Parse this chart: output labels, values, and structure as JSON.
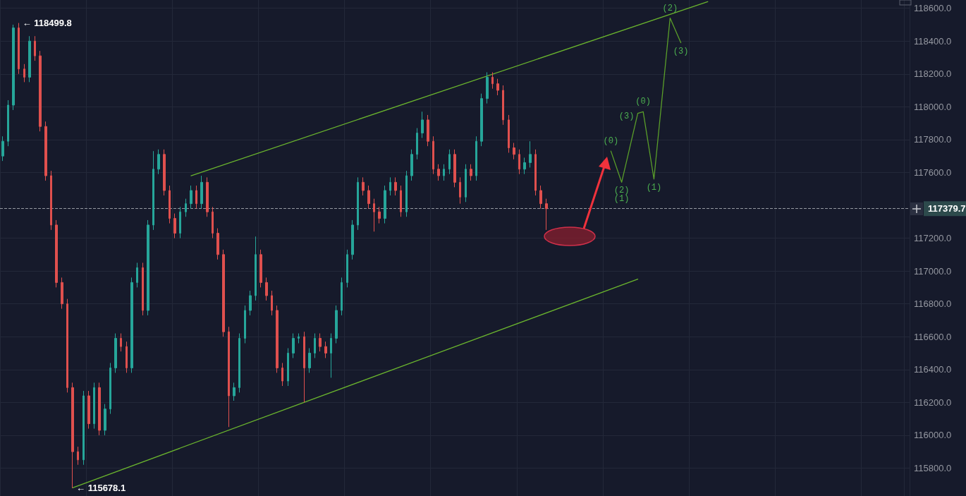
{
  "chart_data": {
    "type": "candlestick",
    "categories": [
      null,
      null,
      null,
      null,
      null,
      null,
      null,
      null,
      null,
      null,
      null,
      null,
      null,
      null,
      null,
      null,
      null,
      null,
      null,
      null,
      null,
      null,
      null,
      null,
      null,
      null,
      null,
      null,
      null,
      null,
      null,
      null,
      null,
      null,
      null,
      null,
      null,
      null,
      null,
      null,
      null,
      null,
      null,
      null,
      null,
      null,
      null,
      null,
      null,
      null,
      null,
      null,
      null,
      null,
      null,
      null,
      null,
      null,
      null,
      null,
      null,
      null,
      null,
      null,
      null,
      null,
      null,
      null,
      null,
      null,
      null,
      null,
      null,
      null,
      null,
      null,
      null,
      null,
      null,
      null,
      null,
      null,
      null,
      null,
      null,
      null,
      null,
      null,
      null,
      null,
      null,
      null,
      null,
      null,
      null,
      null,
      null,
      null,
      null,
      null,
      null,
      null,
      null,
      null,
      null,
      null,
      null,
      null,
      null,
      null,
      null,
      null,
      null,
      null,
      null,
      null,
      null,
      null,
      null,
      null,
      null,
      null,
      null,
      null,
      null,
      null,
      null,
      null,
      null,
      null,
      null,
      null,
      null,
      null,
      null,
      null,
      null,
      null,
      null,
      null,
      null,
      null,
      null,
      null,
      null,
      null,
      null,
      null,
      null,
      null,
      null,
      null,
      null,
      null,
      null,
      null,
      null,
      null,
      null,
      null,
      null,
      null,
      null,
      null,
      null,
      null,
      null,
      null,
      null
    ],
    "ohlc": [
      [
        117700,
        117820,
        117670,
        117790
      ],
      [
        117790,
        118040,
        117760,
        118010
      ],
      [
        118010,
        118499.8,
        117980,
        118480
      ],
      [
        118480,
        118510,
        118200,
        118230
      ],
      [
        118230,
        118260,
        118150,
        118180
      ],
      [
        118180,
        118430,
        118150,
        118400
      ],
      [
        118400,
        118430,
        118280,
        118310
      ],
      [
        118310,
        118340,
        117850,
        117880
      ],
      [
        117880,
        117910,
        117550,
        117580
      ],
      [
        117580,
        117610,
        117250,
        117280
      ],
      [
        117280,
        117310,
        116900,
        116930
      ],
      [
        116930,
        116960,
        116770,
        116800
      ],
      [
        116800,
        116830,
        116260,
        116290
      ],
      [
        116290,
        116320,
        115678.1,
        115900
      ],
      [
        115900,
        115930,
        115820,
        115850
      ],
      [
        115850,
        116270,
        115820,
        116240
      ],
      [
        116240,
        116270,
        116040,
        116070
      ],
      [
        116070,
        116320,
        116040,
        116290
      ],
      [
        116290,
        116320,
        116000,
        116030
      ],
      [
        116030,
        116190,
        116000,
        116160
      ],
      [
        116160,
        116440,
        116130,
        116410
      ],
      [
        116410,
        116620,
        116380,
        116590
      ],
      [
        116590,
        116620,
        116510,
        116540
      ],
      [
        116540,
        116570,
        116380,
        116410
      ],
      [
        116410,
        116960,
        116380,
        116930
      ],
      [
        116930,
        117050,
        116900,
        117020
      ],
      [
        117020,
        117050,
        116730,
        116760
      ],
      [
        116760,
        117310,
        116730,
        117280
      ],
      [
        117280,
        117730,
        117250,
        117620
      ],
      [
        117620,
        117740,
        117590,
        117710
      ],
      [
        117710,
        117740,
        117460,
        117490
      ],
      [
        117490,
        117520,
        117290,
        117320
      ],
      [
        117320,
        117350,
        117200,
        117230
      ],
      [
        117230,
        117390,
        117200,
        117360
      ],
      [
        117360,
        117440,
        117330,
        117410
      ],
      [
        117410,
        117520,
        117380,
        117490
      ],
      [
        117490,
        117520,
        117380,
        117410
      ],
      [
        117410,
        117580,
        117380,
        117540
      ],
      [
        117540,
        117570,
        117330,
        117360
      ],
      [
        117360,
        117390,
        117200,
        117230
      ],
      [
        117230,
        117260,
        117070,
        117100
      ],
      [
        117100,
        117130,
        116600,
        116630
      ],
      [
        116630,
        116660,
        116050,
        116240
      ],
      [
        116240,
        116320,
        116210,
        116290
      ],
      [
        116290,
        116620,
        116260,
        116590
      ],
      [
        116590,
        116790,
        116560,
        116760
      ],
      [
        116760,
        116880,
        116730,
        116850
      ],
      [
        116850,
        117210,
        116820,
        117100
      ],
      [
        117100,
        117130,
        116900,
        116930
      ],
      [
        116930,
        116960,
        116820,
        116850
      ],
      [
        116850,
        116880,
        116730,
        116760
      ],
      [
        116760,
        116790,
        116380,
        116410
      ],
      [
        116410,
        116440,
        116300,
        116330
      ],
      [
        116330,
        116530,
        116300,
        116500
      ],
      [
        116500,
        116620,
        116470,
        116590
      ],
      [
        116590,
        116620,
        116560,
        116600
      ],
      [
        116600,
        116630,
        116200,
        116410
      ],
      [
        116410,
        116530,
        116380,
        116500
      ],
      [
        116500,
        116620,
        116470,
        116590
      ],
      [
        116590,
        116620,
        116510,
        116540
      ],
      [
        116540,
        116570,
        116470,
        116500
      ],
      [
        116500,
        116620,
        116350,
        116590
      ],
      [
        116590,
        116790,
        116560,
        116760
      ],
      [
        116760,
        116960,
        116730,
        116930
      ],
      [
        116930,
        117130,
        116900,
        117100
      ],
      [
        117100,
        117310,
        117070,
        117280
      ],
      [
        117280,
        117570,
        117250,
        117540
      ],
      [
        117540,
        117570,
        117460,
        117490
      ],
      [
        117490,
        117520,
        117380,
        117410
      ],
      [
        117410,
        117440,
        117240,
        117360
      ],
      [
        117360,
        117390,
        117290,
        117320
      ],
      [
        117320,
        117520,
        117290,
        117490
      ],
      [
        117490,
        117570,
        117460,
        117540
      ],
      [
        117540,
        117570,
        117460,
        117490
      ],
      [
        117490,
        117520,
        117330,
        117360
      ],
      [
        117360,
        117610,
        117330,
        117580
      ],
      [
        117580,
        117740,
        117550,
        117710
      ],
      [
        117710,
        117870,
        117680,
        117840
      ],
      [
        117840,
        117970,
        117810,
        117920
      ],
      [
        117920,
        117950,
        117760,
        117790
      ],
      [
        117790,
        117820,
        117590,
        117620
      ],
      [
        117620,
        117650,
        117550,
        117580
      ],
      [
        117580,
        117650,
        117550,
        117620
      ],
      [
        117620,
        117740,
        117590,
        117710
      ],
      [
        117710,
        117740,
        117510,
        117540
      ],
      [
        117540,
        117570,
        117410,
        117450
      ],
      [
        117450,
        117650,
        117420,
        117620
      ],
      [
        117620,
        117650,
        117550,
        117580
      ],
      [
        117580,
        117820,
        117550,
        117790
      ],
      [
        117790,
        118080,
        117760,
        118050
      ],
      [
        118050,
        118210,
        118020,
        118180
      ],
      [
        118180,
        118210,
        118110,
        118140
      ],
      [
        118140,
        118170,
        118070,
        118100
      ],
      [
        118100,
        118130,
        117890,
        117920
      ],
      [
        117920,
        117950,
        117720,
        117750
      ],
      [
        117750,
        117780,
        117680,
        117710
      ],
      [
        117710,
        117740,
        117590,
        117620
      ],
      [
        117620,
        117690,
        117590,
        117660
      ],
      [
        117660,
        117790,
        117630,
        117710
      ],
      [
        117710,
        117740,
        117460,
        117490
      ],
      [
        117490,
        117520,
        117380,
        117410
      ],
      [
        117410,
        117440,
        117250,
        117379.7
      ],
      null,
      null,
      null,
      null,
      null,
      null,
      null,
      null,
      null,
      null,
      null,
      null,
      null,
      null,
      null,
      null,
      null,
      null,
      null,
      null,
      null,
      null,
      null,
      null,
      null,
      null,
      null,
      null,
      null,
      null,
      null,
      null,
      null,
      null,
      null,
      null,
      null,
      null,
      null,
      null,
      null,
      null,
      null,
      null,
      null,
      null,
      null,
      null,
      null,
      null,
      null,
      null,
      null,
      null,
      null,
      null,
      null,
      null,
      null,
      null,
      null,
      null,
      null,
      null,
      null,
      null,
      null
    ],
    "series": [
      {
        "type": "line",
        "color": "#6ab42e",
        "values": [
          null,
          null,
          null,
          null,
          null,
          null,
          null,
          null,
          null,
          null,
          null,
          null,
          null,
          null,
          null,
          null,
          null,
          null,
          null,
          null,
          null,
          null,
          null,
          null,
          null,
          null,
          null,
          null,
          null,
          null,
          null,
          null,
          null,
          null,
          null,
          117580,
          null,
          null,
          null,
          null,
          null,
          null,
          null,
          null,
          null,
          null,
          null,
          null,
          null,
          null,
          null,
          null,
          null,
          null,
          null,
          null,
          null,
          null,
          null,
          null,
          null,
          null,
          null,
          null,
          null,
          null,
          null,
          null,
          null,
          null,
          null,
          null,
          null,
          null,
          null,
          null,
          null,
          null,
          null,
          null,
          null,
          null,
          null,
          null,
          null,
          null,
          null,
          null,
          null,
          null,
          null,
          null,
          null,
          null,
          null,
          null,
          null,
          null,
          null,
          null,
          null,
          null,
          null,
          null,
          null,
          null,
          null,
          null,
          null,
          null,
          null,
          null,
          null,
          null,
          null,
          null,
          null,
          null,
          null,
          null,
          null,
          null,
          null,
          null,
          null,
          null,
          null,
          null,
          null,
          null,
          null,
          118640,
          null,
          null,
          null,
          null,
          null,
          null,
          null,
          null,
          null,
          null,
          null,
          null,
          null,
          null,
          null,
          null,
          null,
          null,
          null,
          null,
          null,
          null,
          null,
          null,
          null,
          null,
          null,
          null,
          null,
          null,
          null,
          null,
          null,
          null,
          null,
          null,
          null
        ]
      },
      {
        "type": "line",
        "color": "#6ab42e",
        "values": [
          null,
          null,
          null,
          null,
          null,
          null,
          null,
          null,
          null,
          null,
          null,
          null,
          null,
          115680,
          null,
          null,
          null,
          null,
          null,
          null,
          null,
          null,
          null,
          null,
          null,
          null,
          null,
          null,
          null,
          null,
          null,
          null,
          null,
          null,
          null,
          null,
          null,
          null,
          null,
          null,
          null,
          null,
          null,
          null,
          null,
          null,
          null,
          null,
          null,
          null,
          null,
          null,
          null,
          null,
          null,
          null,
          null,
          null,
          null,
          null,
          null,
          null,
          null,
          null,
          null,
          null,
          null,
          null,
          null,
          null,
          null,
          null,
          null,
          null,
          null,
          null,
          null,
          null,
          null,
          null,
          null,
          null,
          null,
          null,
          null,
          null,
          null,
          null,
          null,
          null,
          null,
          null,
          null,
          null,
          null,
          null,
          null,
          null,
          null,
          null,
          null,
          null,
          null,
          null,
          null,
          null,
          null,
          null,
          null,
          null,
          null,
          null,
          null,
          null,
          null,
          null,
          null,
          null,
          116950,
          null,
          null,
          null,
          null,
          null,
          null,
          null,
          null,
          null,
          null,
          null,
          null,
          null,
          null,
          null,
          null,
          null,
          null,
          null,
          null,
          null,
          null,
          null,
          null,
          null,
          null,
          null,
          null,
          null,
          null,
          null,
          null,
          null,
          null,
          null,
          null,
          null,
          null,
          null,
          null,
          null,
          null,
          null,
          null,
          null,
          null,
          null,
          null,
          null,
          null
        ]
      },
      {
        "type": "line",
        "color": "#5a9e2a",
        "values": [
          null,
          null,
          null,
          null,
          null,
          null,
          null,
          null,
          null,
          null,
          null,
          null,
          null,
          null,
          null,
          null,
          null,
          null,
          null,
          null,
          null,
          null,
          null,
          null,
          null,
          null,
          null,
          null,
          null,
          null,
          null,
          null,
          null,
          null,
          null,
          null,
          null,
          null,
          null,
          null,
          null,
          null,
          null,
          null,
          null,
          null,
          null,
          null,
          null,
          null,
          null,
          null,
          null,
          null,
          null,
          null,
          null,
          null,
          null,
          null,
          null,
          null,
          null,
          null,
          null,
          null,
          null,
          null,
          null,
          null,
          null,
          null,
          null,
          null,
          null,
          null,
          null,
          null,
          null,
          null,
          null,
          null,
          null,
          null,
          null,
          null,
          null,
          null,
          null,
          null,
          null,
          null,
          null,
          null,
          null,
          null,
          null,
          null,
          null,
          null,
          null,
          null,
          null,
          null,
          null,
          null,
          null,
          null,
          null,
          null,
          null,
          null,
          null,
          117730,
          null,
          117540,
          null,
          null,
          117960,
          117970,
          null,
          117560,
          null,
          null,
          118540,
          null,
          118390,
          null,
          null,
          null,
          null,
          null,
          null,
          null,
          null,
          null,
          null,
          null,
          null,
          null,
          null,
          null,
          null,
          null,
          null,
          null,
          null,
          null,
          null,
          null,
          null,
          null,
          null,
          null,
          null,
          null,
          null,
          null,
          null,
          null,
          null,
          null,
          null,
          null,
          null,
          null,
          null,
          null,
          null
        ]
      }
    ],
    "annotations": [
      "← 118499.8",
      "← 115678.1",
      {
        "text": "(0)",
        "y": 117730
      },
      {
        "text": "(2)",
        "y": 117540
      },
      {
        "text": "(1)",
        "y": 117540
      },
      "(3)",
      {
        "text": "(0)",
        "y": 117970
      },
      {
        "text": "(1)",
        "y": 117560
      },
      {
        "text": "(2)",
        "y": 118540
      },
      {
        "text": "(3)",
        "y": 118390
      }
    ],
    "ref_lines": [
      {
        "axis": "y",
        "value": 117379.7,
        "label": "117379.7",
        "line_style": "dashed",
        "color": "#9598a1"
      }
    ],
    "ylim": [
      115630,
      118650
    ],
    "yticks": [
      {
        "value": 115800,
        "label": "115800.0"
      },
      {
        "value": 116000,
        "label": "116000.0"
      },
      {
        "value": 116200,
        "label": "116200.0"
      },
      {
        "value": 116400,
        "label": "116400.0"
      },
      {
        "value": 116600,
        "label": "116600.0"
      },
      {
        "value": 116800,
        "label": "116800.0"
      },
      {
        "value": 117000,
        "label": "117000.0"
      },
      {
        "value": 117200,
        "label": "117200.0"
      },
      {
        "value": 117600,
        "label": "117600.0"
      },
      {
        "value": 117800,
        "label": "117800.0"
      },
      {
        "value": 118000,
        "label": "118000.0"
      },
      {
        "value": 118200,
        "label": "118200.0"
      },
      {
        "value": 118400,
        "label": "118400.0"
      },
      {
        "value": 118600,
        "label": "118600.0"
      }
    ],
    "tick_labels": "y",
    "grid": true
  }
}
